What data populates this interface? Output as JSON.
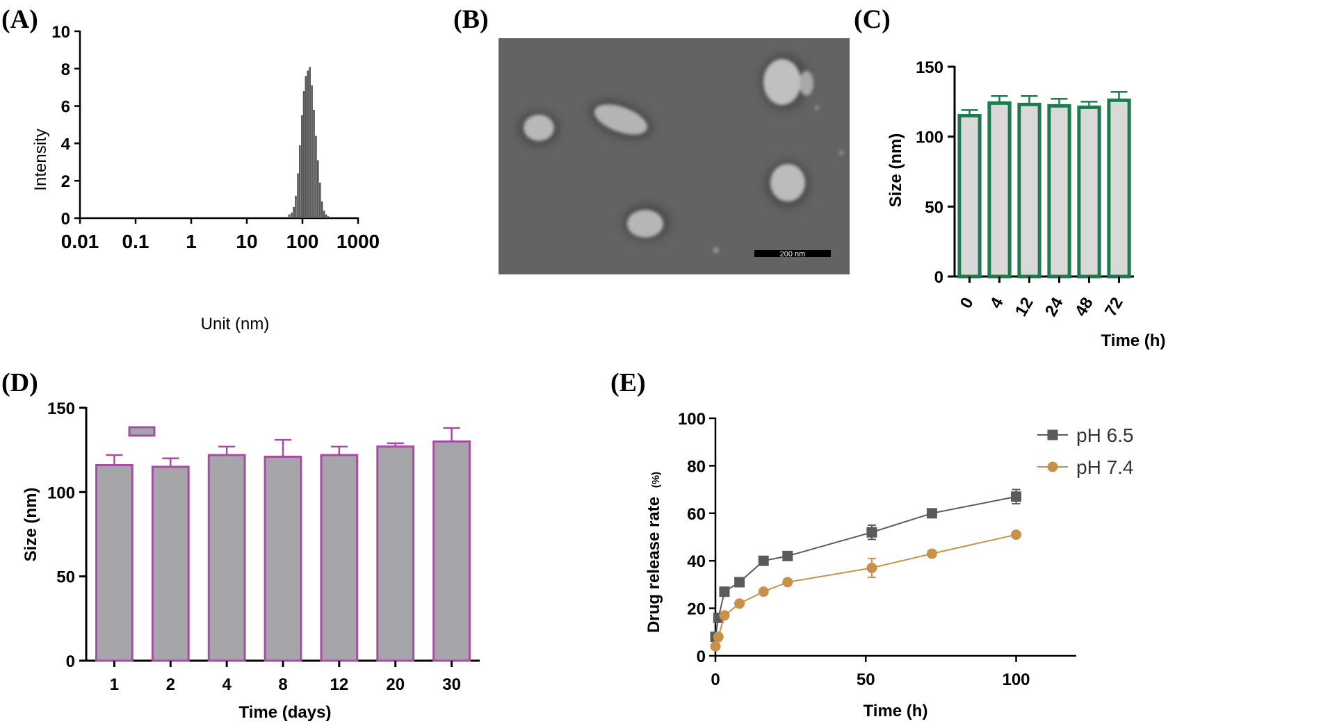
{
  "figure": {
    "panel_labels": [
      "(A)",
      "(B)",
      "(C)",
      "(D)",
      "(E)"
    ]
  },
  "chart_data": [
    {
      "panel": "(A)",
      "type": "bar",
      "title": "",
      "xlabel": "Unit (nm)",
      "ylabel": "Intensity",
      "xscale": "log",
      "xlim": [
        0.01,
        1000
      ],
      "ylim": [
        0,
        10
      ],
      "xticks": [
        "0.01",
        "0.1",
        "1",
        "10",
        "100",
        "1000"
      ],
      "yticks": [
        "0",
        "2",
        "4",
        "6",
        "8",
        "10"
      ],
      "x": [
        58,
        64,
        70,
        76,
        83,
        90,
        98,
        106,
        115,
        125,
        136,
        148,
        161,
        175,
        190,
        207,
        225,
        245,
        267,
        290
      ],
      "values": [
        0.2,
        0.3,
        0.6,
        1.2,
        2.4,
        3.9,
        5.5,
        6.8,
        7.6,
        7.9,
        8.1,
        7.1,
        5.8,
        4.4,
        3.1,
        1.9,
        0.9,
        0.4,
        0.2,
        0.1
      ],
      "color": "#555555"
    },
    {
      "panel": "(C)",
      "type": "bar",
      "title": "",
      "xlabel": "Time (h)",
      "ylabel": "Size (nm)",
      "ylim": [
        0,
        150
      ],
      "yticks": [
        "0",
        "50",
        "100",
        "150"
      ],
      "categories": [
        "0",
        "4",
        "12",
        "24",
        "48",
        "72"
      ],
      "values": [
        115,
        124,
        123,
        122,
        121,
        126
      ],
      "errors": [
        4,
        5,
        6,
        5,
        4,
        6
      ],
      "fill": "#d9d9d9",
      "stroke": "#1f7a4d"
    },
    {
      "panel": "(D)",
      "type": "bar",
      "title": "",
      "xlabel": "Time (days)",
      "ylabel": "Size (nm)",
      "ylim": [
        0,
        150
      ],
      "yticks": [
        "0",
        "50",
        "100",
        "150"
      ],
      "categories": [
        "1",
        "2",
        "4",
        "8",
        "12",
        "20",
        "30"
      ],
      "values": [
        116,
        115,
        122,
        121,
        122,
        127,
        130
      ],
      "errors": [
        6,
        5,
        5,
        10,
        5,
        2,
        8
      ],
      "fill": "#a6a6aa",
      "stroke": "#a64ca6",
      "legend_swatch_value": 136
    },
    {
      "panel": "(E)",
      "type": "line",
      "title": "",
      "xlabel": "Time (h)",
      "ylabel": "Drug release rate",
      "ylabel_unit": "(%)",
      "xlim": [
        0,
        120
      ],
      "ylim": [
        0,
        100
      ],
      "xticks": [
        "0",
        "50",
        "100"
      ],
      "yticks": [
        "0",
        "20",
        "40",
        "60",
        "80",
        "100"
      ],
      "series": [
        {
          "name": "pH 6.5",
          "marker": "square",
          "color": "#5a5a5a",
          "x": [
            0,
            1,
            3,
            8,
            16,
            24,
            52,
            72,
            100
          ],
          "values": [
            8,
            16,
            27,
            31,
            40,
            42,
            52,
            60,
            67
          ],
          "errors": [
            0,
            0,
            0,
            0,
            0,
            0,
            3,
            0,
            3
          ]
        },
        {
          "name": "pH 7.4",
          "marker": "circle",
          "color": "#c8914a",
          "x": [
            0,
            1,
            3,
            8,
            16,
            24,
            52,
            72,
            100
          ],
          "values": [
            4,
            8,
            17,
            22,
            27,
            31,
            37,
            43,
            51
          ],
          "errors": [
            0,
            0,
            0,
            0,
            0,
            0,
            4,
            0,
            0
          ]
        }
      ]
    }
  ],
  "micrograph": {
    "panel": "(B)",
    "scale_bar_label": "200 nm",
    "background": "#5f5f5f"
  }
}
